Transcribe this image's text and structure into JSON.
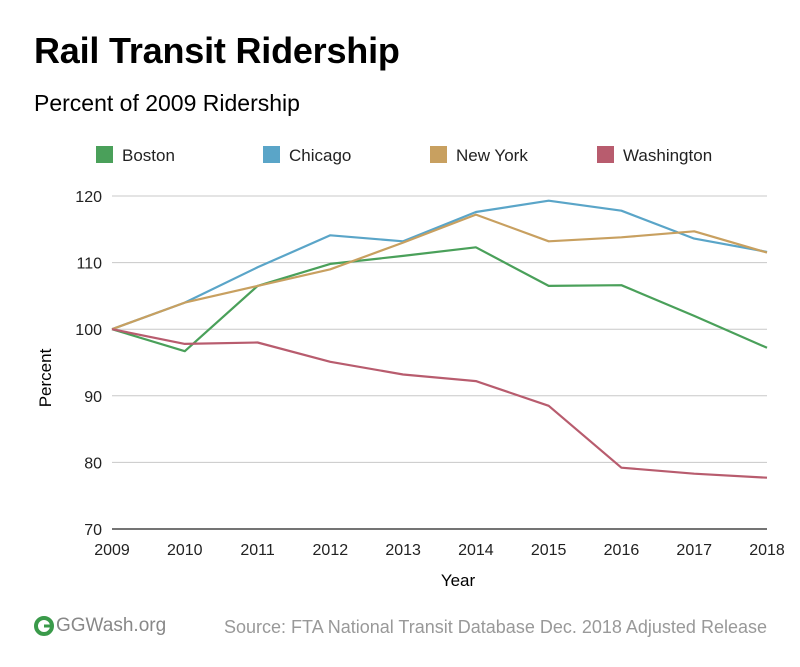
{
  "title": "Rail Transit Ridership",
  "subtitle": "Percent of 2009 Ridership",
  "logo_text": "GGWash.org",
  "source": "Source: FTA National Transit Database Dec. 2018 Adjusted Release",
  "chart_data": {
    "type": "line",
    "xlabel": "Year",
    "ylabel": "Percent",
    "ylim": [
      70,
      120
    ],
    "yticks": [
      70,
      80,
      90,
      100,
      110,
      120
    ],
    "grid": true,
    "legend_position": "top",
    "x": [
      "2009",
      "2010",
      "2011",
      "2012",
      "2013",
      "2014",
      "2015",
      "2016",
      "2017",
      "2018"
    ],
    "series": [
      {
        "name": "Boston",
        "color": "#4aa05a",
        "values": [
          100,
          96.7,
          106.5,
          109.8,
          111.0,
          112.3,
          106.5,
          106.6,
          102.0,
          97.2
        ]
      },
      {
        "name": "Chicago",
        "color": "#5aa5c8",
        "values": [
          100,
          104.0,
          109.3,
          114.1,
          113.2,
          117.6,
          119.3,
          117.8,
          113.6,
          111.6
        ]
      },
      {
        "name": "New York",
        "color": "#c8a060",
        "values": [
          100,
          104.0,
          106.5,
          109.0,
          113.0,
          117.2,
          113.2,
          113.8,
          114.7,
          111.5
        ]
      },
      {
        "name": "Washington",
        "color": "#b85c6e",
        "values": [
          100,
          97.8,
          98.0,
          95.1,
          93.2,
          92.2,
          88.5,
          79.2,
          78.3,
          77.7
        ]
      }
    ]
  }
}
